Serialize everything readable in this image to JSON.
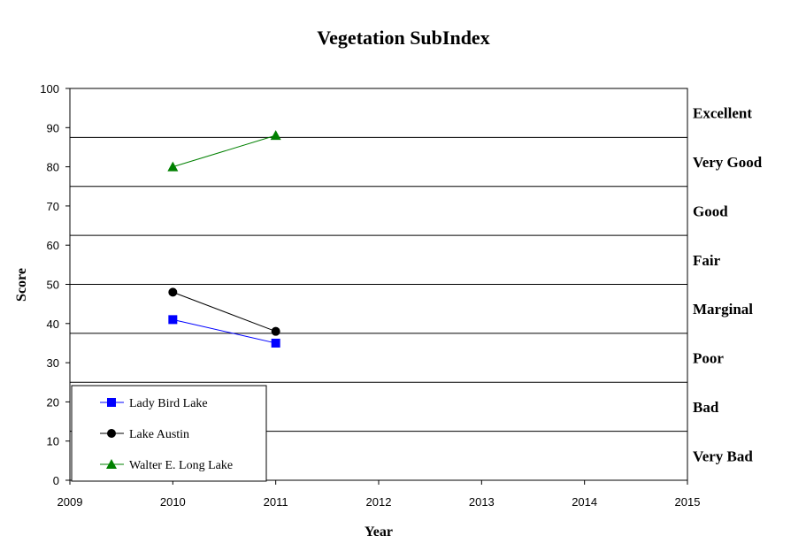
{
  "chart_data": {
    "type": "line",
    "title": "Vegetation SubIndex",
    "xlabel": "Year",
    "ylabel": "Score",
    "xlim": [
      2009,
      2015
    ],
    "ylim": [
      0,
      100
    ],
    "x_ticks": [
      2009,
      2010,
      2011,
      2012,
      2013,
      2014,
      2015
    ],
    "y_ticks": [
      0,
      10,
      20,
      30,
      40,
      50,
      60,
      70,
      80,
      90,
      100
    ],
    "grid": false,
    "legend_position": "bottom-left",
    "category_bands": [
      {
        "label": "Excellent",
        "from": 87.5,
        "to": 100
      },
      {
        "label": "Very Good",
        "from": 75,
        "to": 87.5
      },
      {
        "label": "Good",
        "from": 62.5,
        "to": 75
      },
      {
        "label": "Fair",
        "from": 50,
        "to": 62.5
      },
      {
        "label": "Marginal",
        "from": 37.5,
        "to": 50
      },
      {
        "label": "Poor",
        "from": 25,
        "to": 37.5
      },
      {
        "label": "Bad",
        "from": 12.5,
        "to": 25
      },
      {
        "label": "Very Bad",
        "from": 0,
        "to": 12.5
      }
    ],
    "series": [
      {
        "name": "Lady Bird Lake",
        "color": "#0000ff",
        "marker": "square",
        "x": [
          2010,
          2011
        ],
        "y": [
          41,
          35
        ]
      },
      {
        "name": "Lake Austin",
        "color": "#000000",
        "marker": "circle",
        "x": [
          2010,
          2011
        ],
        "y": [
          48,
          38
        ]
      },
      {
        "name": "Walter E. Long Lake",
        "color": "#008000",
        "marker": "triangle",
        "x": [
          2010,
          2011
        ],
        "y": [
          80,
          88
        ]
      }
    ]
  }
}
